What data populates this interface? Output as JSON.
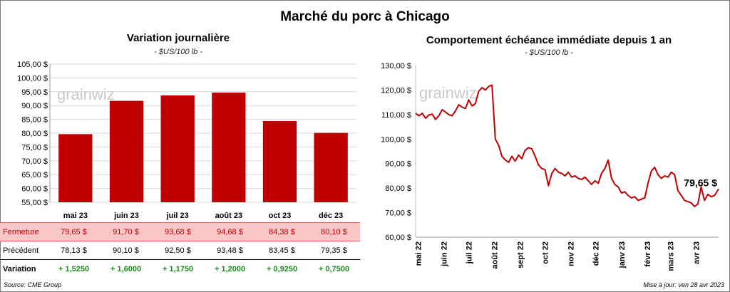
{
  "title": "Marché du porc à Chicago",
  "left": {
    "title": "Variation  journalière",
    "unit": "- $US/100 lb -"
  },
  "right": {
    "title": "Comportement  échéance immédiate depuis 1 an",
    "unit": "- $US/100 lb -",
    "last_label": "79,65 $"
  },
  "watermark": "grainwiz",
  "table": {
    "close_label": "Fermeture",
    "prev_label": "Précédent",
    "var_label": "Variation",
    "close": [
      "79,65  $",
      "91,70  $",
      "93,68  $",
      "94,68  $",
      "84,38  $",
      "80,10  $"
    ],
    "prev": [
      "78,13  $",
      "90,10  $",
      "92,50  $",
      "93,48  $",
      "83,45  $",
      "79,35  $"
    ],
    "var": [
      "+ 1,5250",
      "+ 1,6000",
      "+ 1,1750",
      "+ 1,2000",
      "+ 0,9250",
      "+ 0,7500"
    ]
  },
  "footer": {
    "source": "Source: CME Group",
    "update": "Mise à jour: ven 28 avr 2023"
  },
  "colors": {
    "bar": "#c00000",
    "line": "#c00000",
    "close_bg": "#f8c7c5",
    "variation": "#1a8a1a"
  },
  "chart_data": [
    {
      "type": "bar",
      "categories": [
        "mai 23",
        "juin 23",
        "juil 23",
        "août 23",
        "oct 23",
        "déc 23"
      ],
      "values": [
        79.65,
        91.7,
        93.68,
        94.68,
        84.38,
        80.1
      ],
      "ylim": [
        55,
        105
      ],
      "yticks": [
        "55,00 $",
        "60,00 $",
        "65,00 $",
        "70,00 $",
        "75,00 $",
        "80,00 $",
        "85,00 $",
        "90,00 $",
        "95,00 $",
        "100,00 $",
        "105,00 $"
      ],
      "grid": true
    },
    {
      "type": "line",
      "x": [
        "2022-04-28",
        "2022-05-02",
        "2022-05-06",
        "2022-05-10",
        "2022-05-14",
        "2022-05-18",
        "2022-05-22",
        "2022-05-26",
        "2022-05-30",
        "2022-06-03",
        "2022-06-07",
        "2022-06-11",
        "2022-06-15",
        "2022-06-19",
        "2022-06-23",
        "2022-06-27",
        "2022-07-01",
        "2022-07-05",
        "2022-07-09",
        "2022-07-13",
        "2022-07-17",
        "2022-07-21",
        "2022-07-25",
        "2022-07-29",
        "2022-08-02",
        "2022-08-06",
        "2022-08-10",
        "2022-08-14",
        "2022-08-18",
        "2022-08-22",
        "2022-08-26",
        "2022-08-30",
        "2022-09-03",
        "2022-09-07",
        "2022-09-11",
        "2022-09-15",
        "2022-09-19",
        "2022-09-23",
        "2022-09-27",
        "2022-10-01",
        "2022-10-05",
        "2022-10-09",
        "2022-10-13",
        "2022-10-17",
        "2022-10-21",
        "2022-10-25",
        "2022-10-29",
        "2022-11-02",
        "2022-11-06",
        "2022-11-10",
        "2022-11-14",
        "2022-11-18",
        "2022-11-22",
        "2022-11-26",
        "2022-11-30",
        "2022-12-04",
        "2022-12-08",
        "2022-12-12",
        "2022-12-16",
        "2022-12-20",
        "2022-12-24",
        "2022-12-28",
        "2023-01-01",
        "2023-01-05",
        "2023-01-09",
        "2023-01-13",
        "2023-01-17",
        "2023-01-21",
        "2023-01-25",
        "2023-01-29",
        "2023-02-02",
        "2023-02-06",
        "2023-02-10",
        "2023-02-14",
        "2023-02-18",
        "2023-02-22",
        "2023-02-26",
        "2023-03-02",
        "2023-03-06",
        "2023-03-10",
        "2023-03-14",
        "2023-03-18",
        "2023-03-22",
        "2023-03-26",
        "2023-03-30",
        "2023-04-03",
        "2023-04-07",
        "2023-04-11",
        "2023-04-15",
        "2023-04-19",
        "2023-04-23",
        "2023-04-28"
      ],
      "y": [
        110.5,
        109.5,
        110.5,
        108.5,
        109.8,
        110.2,
        108.0,
        109.5,
        112.0,
        111.0,
        110.0,
        109.5,
        111.5,
        114.0,
        113.0,
        112.5,
        116.0,
        113.5,
        114.5,
        119.5,
        121.0,
        120.0,
        121.5,
        122.0,
        100.0,
        97.5,
        93.0,
        91.5,
        90.5,
        93.0,
        91.0,
        93.5,
        92.0,
        95.5,
        96.5,
        96.0,
        93.0,
        89.5,
        88.0,
        87.5,
        81.0,
        86.0,
        88.0,
        86.5,
        86.0,
        85.0,
        86.5,
        84.5,
        85.0,
        84.0,
        83.5,
        84.5,
        83.0,
        81.5,
        83.0,
        82.0,
        86.0,
        88.0,
        91.5,
        84.0,
        81.5,
        80.5,
        78.0,
        78.5,
        77.0,
        76.0,
        76.5,
        75.0,
        75.5,
        76.0,
        82.0,
        87.0,
        88.5,
        85.5,
        84.0,
        85.0,
        84.5,
        86.5,
        85.5,
        79.0,
        77.0,
        75.0,
        74.5,
        74.0,
        72.5,
        73.5,
        80.5,
        75.0,
        77.5,
        76.5,
        77.0,
        79.65
      ],
      "ylim": [
        60,
        130
      ],
      "yticks": [
        "60,00 $",
        "70,00 $",
        "80,00 $",
        "90,00 $",
        "100,00 $",
        "110,00 $",
        "120,00 $",
        "130,00 $"
      ],
      "xticks": [
        "mai 22",
        "juin 22",
        "juil 22",
        "août 22",
        "sept 22",
        "oct 22",
        "nov 22",
        "déc 22",
        "janv 23",
        "févr 23",
        "mars 23",
        "avr 23"
      ],
      "xtick_dates": [
        "2022-05-01",
        "2022-06-01",
        "2022-07-01",
        "2022-08-01",
        "2022-09-01",
        "2022-10-01",
        "2022-11-01",
        "2022-12-01",
        "2023-01-01",
        "2023-02-01",
        "2023-03-01",
        "2023-04-01"
      ],
      "grid": false
    }
  ]
}
